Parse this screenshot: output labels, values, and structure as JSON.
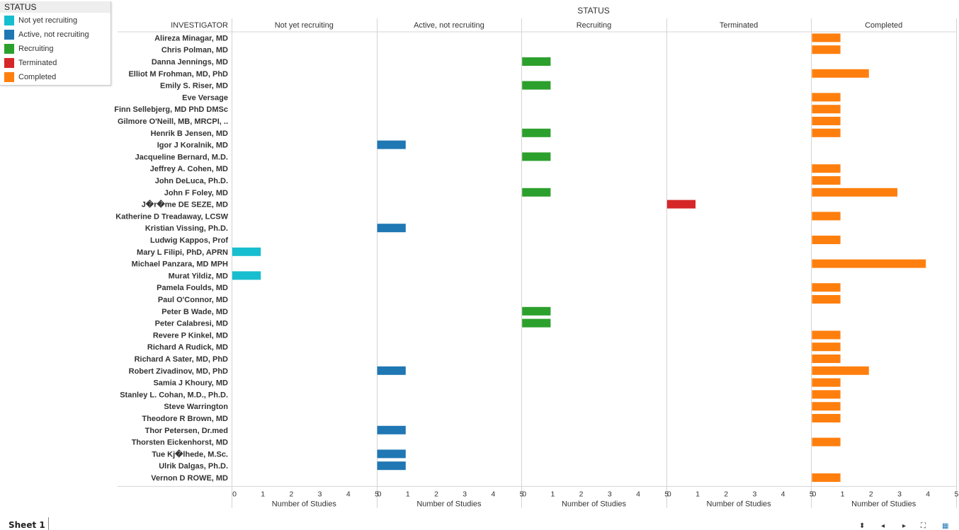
{
  "chart_data": {
    "type": "bar",
    "orientation": "horizontal",
    "title": "STATUS",
    "row_header": "INVESTIGATOR",
    "xlabel": "Number of Studies",
    "xlim": [
      0,
      5
    ],
    "xticks": [
      "0",
      "1",
      "2",
      "3",
      "4",
      "5"
    ],
    "legend": {
      "title": "STATUS",
      "placement": "top-left",
      "items": [
        {
          "label": "Not yet recruiting",
          "color": "#17becf"
        },
        {
          "label": "Active, not recruiting",
          "color": "#1f77b4"
        },
        {
          "label": "Recruiting",
          "color": "#2ca02c"
        },
        {
          "label": "Terminated",
          "color": "#d62728"
        },
        {
          "label": "Completed",
          "color": "#ff7f0e"
        }
      ]
    },
    "columns": [
      "Not yet recruiting",
      "Active, not recruiting",
      "Recruiting",
      "Terminated",
      "Completed"
    ],
    "categories": [
      "Alireza Minagar, MD",
      "Chris Polman, MD",
      "Danna Jennings, MD",
      "Elliot M Frohman, MD, PhD",
      "Emily S. Riser, MD",
      "Eve Versage",
      "Finn Sellebjerg, MD PhD DMSc",
      "Gilmore O'Neill, MB, MRCPI, ..",
      "Henrik B Jensen, MD",
      "Igor J Koralnik, MD",
      "Jacqueline Bernard, M.D.",
      "Jeffrey A. Cohen, MD",
      "John DeLuca, Ph.D.",
      "John F Foley, MD",
      "J�r�me DE SEZE, MD",
      "Katherine D Treadaway, LCSW",
      "Kristian Vissing, Ph.D.",
      "Ludwig Kappos, Prof",
      "Mary L Filipi, PhD, APRN",
      "Michael Panzara, MD MPH",
      "Murat Yildiz, MD",
      "Pamela Foulds, MD",
      "Paul O'Connor, MD",
      "Peter B Wade, MD",
      "Peter Calabresi, MD",
      "Revere P Kinkel, MD",
      "Richard A Rudick, MD",
      "Richard A Sater, MD, PhD",
      "Robert Zivadinov, MD, PhD",
      "Samia J Khoury, MD",
      "Stanley L. Cohan, M.D., Ph.D.",
      "Steve Warrington",
      "Theodore R Brown, MD",
      "Thor Petersen, Dr.med",
      "Thorsten Eickenhorst, MD",
      "Tue Kj�lhede, M.Sc.",
      "Ulrik Dalgas, Ph.D.",
      "Vernon D ROWE, MD"
    ],
    "series": [
      {
        "name": "Not yet recruiting",
        "color": "#17becf",
        "values": [
          0,
          0,
          0,
          0,
          0,
          0,
          0,
          0,
          0,
          0,
          0,
          0,
          0,
          0,
          0,
          0,
          0,
          0,
          1,
          0,
          1,
          0,
          0,
          0,
          0,
          0,
          0,
          0,
          0,
          0,
          0,
          0,
          0,
          0,
          0,
          0,
          0,
          0
        ]
      },
      {
        "name": "Active, not recruiting",
        "color": "#1f77b4",
        "values": [
          0,
          0,
          0,
          0,
          0,
          0,
          0,
          0,
          0,
          1,
          0,
          0,
          0,
          0,
          0,
          0,
          1,
          0,
          0,
          0,
          0,
          0,
          0,
          0,
          0,
          0,
          0,
          0,
          1,
          0,
          0,
          0,
          0,
          1,
          0,
          1,
          1,
          0
        ]
      },
      {
        "name": "Recruiting",
        "color": "#2ca02c",
        "values": [
          0,
          0,
          1,
          0,
          1,
          0,
          0,
          0,
          1,
          0,
          1,
          0,
          0,
          1,
          0,
          0,
          0,
          0,
          0,
          0,
          0,
          0,
          0,
          1,
          1,
          0,
          0,
          0,
          0,
          0,
          0,
          0,
          0,
          0,
          0,
          0,
          0,
          0
        ]
      },
      {
        "name": "Terminated",
        "color": "#d62728",
        "values": [
          0,
          0,
          0,
          0,
          0,
          0,
          0,
          0,
          0,
          0,
          0,
          0,
          0,
          0,
          1,
          0,
          0,
          0,
          0,
          0,
          0,
          0,
          0,
          0,
          0,
          0,
          0,
          0,
          0,
          0,
          0,
          0,
          0,
          0,
          0,
          0,
          0,
          0
        ]
      },
      {
        "name": "Completed",
        "color": "#ff7f0e",
        "values": [
          1,
          1,
          0,
          2,
          0,
          1,
          1,
          1,
          1,
          0,
          0,
          1,
          1,
          3,
          0,
          1,
          0,
          1,
          0,
          4,
          0,
          1,
          1,
          0,
          0,
          1,
          1,
          1,
          2,
          1,
          1,
          1,
          1,
          0,
          1,
          0,
          0,
          1
        ]
      }
    ],
    "grid": false
  },
  "footer": {
    "sheet_tab": "Sheet 1"
  }
}
